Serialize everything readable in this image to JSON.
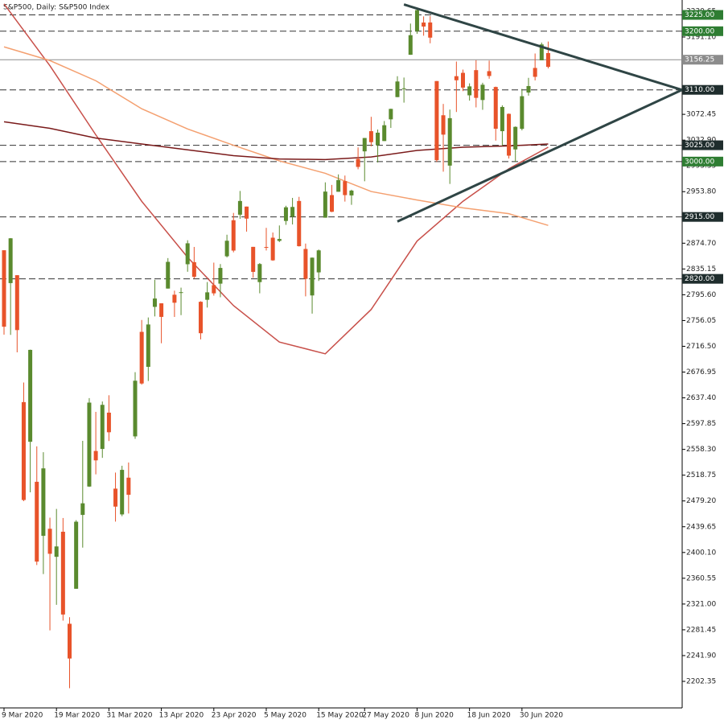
{
  "chart_data": {
    "type": "candlestick",
    "title": "S&P500, Daily:  S&P500 Index",
    "x": [
      "2020-03-09",
      "2020-03-10",
      "2020-03-11",
      "2020-03-12",
      "2020-03-13",
      "2020-03-16",
      "2020-03-17",
      "2020-03-18",
      "2020-03-19",
      "2020-03-20",
      "2020-03-23",
      "2020-03-24",
      "2020-03-25",
      "2020-03-26",
      "2020-03-27",
      "2020-03-30",
      "2020-03-31",
      "2020-04-01",
      "2020-04-02",
      "2020-04-03",
      "2020-04-06",
      "2020-04-07",
      "2020-04-08",
      "2020-04-09",
      "2020-04-13",
      "2020-04-14",
      "2020-04-15",
      "2020-04-16",
      "2020-04-17",
      "2020-04-20",
      "2020-04-21",
      "2020-04-22",
      "2020-04-23",
      "2020-04-24",
      "2020-04-27",
      "2020-04-28",
      "2020-04-29",
      "2020-04-30",
      "2020-05-01",
      "2020-05-04",
      "2020-05-05",
      "2020-05-06",
      "2020-05-07",
      "2020-05-08",
      "2020-05-11",
      "2020-05-12",
      "2020-05-13",
      "2020-05-14",
      "2020-05-15",
      "2020-05-18",
      "2020-05-19",
      "2020-05-20",
      "2020-05-21",
      "2020-05-22",
      "2020-05-26",
      "2020-05-27",
      "2020-05-28",
      "2020-05-29",
      "2020-06-01",
      "2020-06-02",
      "2020-06-03",
      "2020-06-04",
      "2020-06-05",
      "2020-06-08",
      "2020-06-09",
      "2020-06-10",
      "2020-06-11",
      "2020-06-12",
      "2020-06-15",
      "2020-06-16",
      "2020-06-17",
      "2020-06-18",
      "2020-06-19",
      "2020-06-22",
      "2020-06-23",
      "2020-06-24",
      "2020-06-25",
      "2020-06-26",
      "2020-06-29",
      "2020-06-30",
      "2020-07-01",
      "2020-07-02",
      "2020-07-06",
      "2020-07-07"
    ],
    "open": [
      2863.89,
      2813.48,
      2825.6,
      2630.86,
      2569.99,
      2508.59,
      2425.66,
      2436.5,
      2393.48,
      2431.94,
      2290.71,
      2344.44,
      2457.77,
      2501.29,
      2555.87,
      2558.98,
      2614.69,
      2498.08,
      2458.54,
      2514.92,
      2578.28,
      2738.65,
      2685.0,
      2776.99,
      2782.46,
      2805.1,
      2795.64,
      2799.34,
      2842.43,
      2845.62,
      2784.81,
      2787.89,
      2810.42,
      2812.64,
      2854.65,
      2909.96,
      2918.46,
      2930.91,
      2869.09,
      2815.01,
      2868.88,
      2883.14,
      2878.26,
      2908.83,
      2915.46,
      2939.5,
      2865.86,
      2794.54,
      2829.95,
      2913.86,
      2948.59,
      2953.63,
      2969.95,
      2948.05,
      3004.08,
      3015.65,
      3046.61,
      3025.17,
      3031.48,
      3064.78,
      3098.9,
      3111.56,
      3163.84,
      3199.92,
      3213.32,
      3213.42,
      3123.53,
      3071.04,
      2993.76,
      3131.0,
      3136.13,
      3101.64,
      3140.29,
      3094.42,
      3138.7,
      3114.4,
      3046.6,
      3073.2,
      3018.59,
      3050.2,
      3105.92,
      3143.64,
      3155.29,
      3166.44
    ],
    "high": [
      2863.89,
      2882.59,
      2825.6,
      2660.95,
      2711.33,
      2562.98,
      2553.93,
      2453.57,
      2466.97,
      2453.01,
      2300.73,
      2449.71,
      2571.42,
      2637.01,
      2615.91,
      2631.8,
      2641.39,
      2522.75,
      2533.22,
      2538.18,
      2676.85,
      2756.89,
      2760.75,
      2818.57,
      2782.46,
      2851.85,
      2801.88,
      2806.51,
      2879.22,
      2868.98,
      2785.54,
      2815.1,
      2844.9,
      2842.71,
      2887.72,
      2921.15,
      2954.86,
      2930.91,
      2869.09,
      2844.24,
      2898.23,
      2891.11,
      2901.92,
      2932.16,
      2944.25,
      2945.82,
      2874.14,
      2852.8,
      2865.01,
      2968.09,
      2964.21,
      2980.29,
      2978.5,
      2956.76,
      3021.72,
      3036.25,
      3068.67,
      3049.17,
      3062.18,
      3081.07,
      3130.94,
      3128.91,
      3211.72,
      3233.13,
      3222.71,
      3223.27,
      3123.53,
      3088.42,
      3079.76,
      3153.45,
      3141.16,
      3120.0,
      3155.53,
      3120.92,
      3154.9,
      3115.01,
      3086.25,
      3073.73,
      3053.89,
      3111.51,
      3128.44,
      3165.81,
      3182.59,
      3184.15
    ],
    "low": [
      2734.43,
      2734.0,
      2707.22,
      2478.86,
      2492.37,
      2380.94,
      2367.04,
      2280.52,
      2319.78,
      2295.56,
      2191.86,
      2344.44,
      2407.53,
      2500.72,
      2520.02,
      2545.28,
      2571.15,
      2447.49,
      2455.79,
      2459.96,
      2574.57,
      2657.67,
      2663.3,
      2762.36,
      2721.17,
      2805.1,
      2761.54,
      2764.32,
      2830.88,
      2820.43,
      2727.1,
      2775.95,
      2794.26,
      2791.76,
      2852.89,
      2860.71,
      2912.16,
      2892.47,
      2821.61,
      2797.85,
      2863.55,
      2847.65,
      2876.48,
      2902.88,
      2903.44,
      2869.59,
      2793.15,
      2766.64,
      2816.78,
      2913.86,
      2922.35,
      2953.63,
      2938.57,
      2933.59,
      2988.17,
      2969.75,
      3023.4,
      2998.61,
      3031.48,
      3051.64,
      3098.9,
      3090.41,
      3163.84,
      3196.0,
      3193.11,
      3181.49,
      2999.49,
      2984.47,
      2965.66,
      3076.06,
      3108.03,
      3093.51,
      3083.11,
      3079.39,
      3127.12,
      3032.13,
      3024.01,
      3004.63,
      2999.74,
      3047.83,
      3101.17,
      3124.52,
      3155.29,
      3142.93
    ],
    "close": [
      2746.56,
      2882.23,
      2741.38,
      2480.64,
      2711.02,
      2386.13,
      2529.19,
      2398.1,
      2409.39,
      2304.92,
      2237.4,
      2447.33,
      2475.56,
      2630.07,
      2541.47,
      2626.65,
      2584.59,
      2470.5,
      2526.9,
      2488.65,
      2663.68,
      2659.41,
      2749.98,
      2789.82,
      2761.63,
      2846.06,
      2783.36,
      2799.55,
      2874.56,
      2823.16,
      2736.56,
      2799.31,
      2797.8,
      2836.74,
      2878.48,
      2863.39,
      2939.51,
      2912.43,
      2830.71,
      2842.74,
      2868.44,
      2848.42,
      2881.19,
      2929.8,
      2930.32,
      2870.12,
      2820.0,
      2852.5,
      2863.7,
      2953.91,
      2922.94,
      2971.61,
      2948.51,
      2955.45,
      2991.77,
      3036.13,
      3029.73,
      3044.31,
      3055.73,
      3080.82,
      3122.87,
      3112.35,
      3193.93,
      3232.39,
      3207.18,
      3190.14,
      3002.1,
      3041.31,
      3066.59,
      3124.74,
      3113.49,
      3115.34,
      3097.74,
      3117.86,
      3131.29,
      3050.33,
      3083.76,
      3009.05,
      3053.24,
      3100.29,
      3115.86,
      3130.01,
      3179.72,
      3145.32
    ],
    "up_color": "#5a8a2e",
    "down_color": "#e8532a",
    "ylim": [
      2161.6,
      3247.9
    ],
    "yticks": [
      3230.65,
      {
        "value": 3191.1,
        "label": "3191.10"
      },
      3072.45,
      {
        "value": 3032.9,
        "label": "3032.90"
      },
      2993.35,
      {
        "value": 2953.8,
        "label": "2953.80"
      },
      2914.25,
      {
        "value": 2874.7,
        "label": "2874.70"
      },
      2835.15,
      {
        "value": 2795.6,
        "label": "2795.60"
      },
      2756.05,
      {
        "value": 2716.5,
        "label": "2716.50"
      },
      2676.95,
      {
        "value": 2637.4,
        "label": "2637.40"
      },
      2597.85,
      {
        "value": 2558.3,
        "label": "2558.30"
      },
      2518.75,
      {
        "value": 2479.2,
        "label": "2479.20"
      },
      2439.65,
      {
        "value": 2400.1,
        "label": "2400.10"
      },
      2360.55,
      {
        "value": 2321,
        "label": "2321.00"
      },
      2281.45,
      {
        "value": 2241.9,
        "label": "2241.90"
      },
      2202.35
    ],
    "xticks": [
      {
        "value": "2020-03-09",
        "label": "9 Mar 2020"
      },
      {
        "value": "2020-03-19",
        "label": "19 Mar 2020"
      },
      {
        "value": "2020-03-31",
        "label": "31 Mar 2020"
      },
      {
        "value": "2020-04-13",
        "label": "13 Apr 2020"
      },
      {
        "value": "2020-04-23",
        "label": "23 Apr 2020"
      },
      {
        "value": "2020-05-05",
        "label": "5 May 2020"
      },
      {
        "value": "2020-05-15",
        "label": "15 May 2020"
      },
      {
        "value": "2020-05-27",
        "label": "27 May 2020"
      },
      {
        "value": "2020-06-08",
        "label": "8 Jun 2020"
      },
      {
        "value": "2020-06-18",
        "label": "18 Jun 2020"
      },
      {
        "value": "2020-06-30",
        "label": "30 Jun 2020"
      }
    ],
    "moving_averages": [
      {
        "color": "#c8504a",
        "x": [
          "2020-03-09",
          "2020-03-18",
          "2020-03-27",
          "2020-04-07",
          "2020-04-17",
          "2020-04-28",
          "2020-05-07",
          "2020-05-18",
          "2020-05-28",
          "2020-06-08",
          "2020-06-17",
          "2020-06-26",
          "2020-07-07"
        ],
        "values": [
          3242,
          3147,
          3041,
          2939,
          2853,
          2779,
          2723,
          2705,
          2773,
          2878,
          2939,
          2989,
          3022
        ]
      },
      {
        "color": "#f4a070",
        "x": [
          "2020-03-09",
          "2020-03-18",
          "2020-03-27",
          "2020-04-07",
          "2020-04-17",
          "2020-04-28",
          "2020-05-07",
          "2020-05-18",
          "2020-05-28",
          "2020-06-08",
          "2020-06-17",
          "2020-06-26",
          "2020-07-07"
        ],
        "values": [
          3176,
          3155,
          3124,
          3081,
          3050,
          3025,
          3001,
          2982,
          2954,
          2941,
          2929,
          2920,
          2902
        ]
      },
      {
        "color": "#7a1a1a",
        "x": [
          "2020-03-09",
          "2020-03-18",
          "2020-03-27",
          "2020-04-07",
          "2020-04-17",
          "2020-04-28",
          "2020-05-07",
          "2020-05-18",
          "2020-05-28",
          "2020-06-08",
          "2020-06-17",
          "2020-06-26",
          "2020-07-07"
        ],
        "values": [
          3061,
          3051,
          3036,
          3027,
          3018,
          3009,
          3004,
          3003,
          3007,
          3017,
          3022,
          3024,
          3027
        ]
      }
    ],
    "trendlines": [
      {
        "color": "#2f4545",
        "x": [
          "2020-06-04",
          "2020-07-07"
        ],
        "values": [
          3241,
          3173
        ]
      },
      {
        "color": "#2f4545",
        "x": [
          "2020-06-03",
          "2020-07-07"
        ],
        "values": [
          2908,
          3015
        ]
      }
    ],
    "levels": [
      {
        "value": 3225,
        "label": "3225.00",
        "color": "#2e7d32"
      },
      {
        "value": 3200,
        "label": "3200.00",
        "color": "#2e7d32"
      },
      {
        "value": 3110,
        "label": "3110.00",
        "color": "#1f2d2d"
      },
      {
        "value": 3025,
        "label": "3025.00",
        "color": "#1f2d2d"
      },
      {
        "value": 3000,
        "label": "3000.00",
        "color": "#2e7d32"
      },
      {
        "value": 2915,
        "label": "2915.00",
        "color": "#1f2d2d"
      },
      {
        "value": 2820,
        "label": "2820.00",
        "color": "#1f2d2d"
      }
    ],
    "current_price": {
      "value": 3156.25,
      "label": "3156.25",
      "color": "#8c8c8c"
    }
  }
}
